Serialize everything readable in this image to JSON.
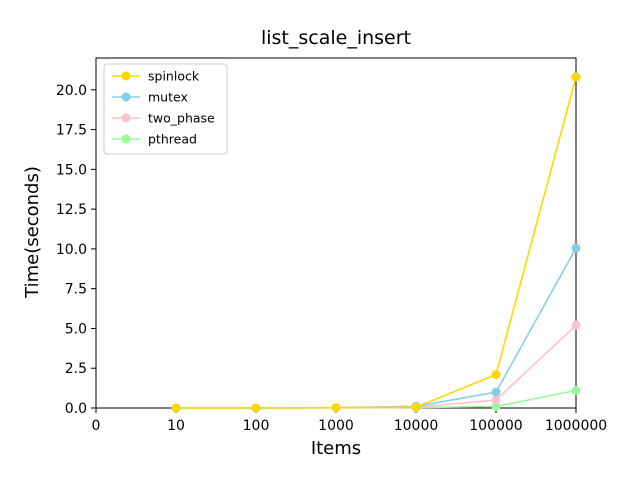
{
  "chart_data": {
    "type": "line",
    "title": "list_scale_insert",
    "xlabel": "Items",
    "ylabel": "Time(seconds)",
    "categories": [
      "0",
      "10",
      "100",
      "1000",
      "10000",
      "100000",
      "1000000"
    ],
    "ylim": [
      0,
      22
    ],
    "yticks": [
      "0.0",
      "2.5",
      "5.0",
      "7.5",
      "10.0",
      "12.5",
      "15.0",
      "17.5",
      "20.0"
    ],
    "legend_position": "upper-left",
    "grid": false,
    "series": [
      {
        "name": "spinlock",
        "color": "#FFD700",
        "values": [
          null,
          0.0,
          0.0,
          0.02,
          0.05,
          2.1,
          20.8
        ]
      },
      {
        "name": "mutex",
        "color": "#87CEEB",
        "values": [
          null,
          0.0,
          0.0,
          0.02,
          0.1,
          1.0,
          10.05
        ]
      },
      {
        "name": "two_phase",
        "color": "#FFC0CB",
        "values": [
          null,
          0.0,
          0.0,
          0.01,
          0.05,
          0.5,
          5.2
        ]
      },
      {
        "name": "pthread",
        "color": "#98FB98",
        "values": [
          null,
          0.0,
          0.0,
          0.01,
          0.03,
          0.1,
          1.1
        ]
      }
    ]
  }
}
